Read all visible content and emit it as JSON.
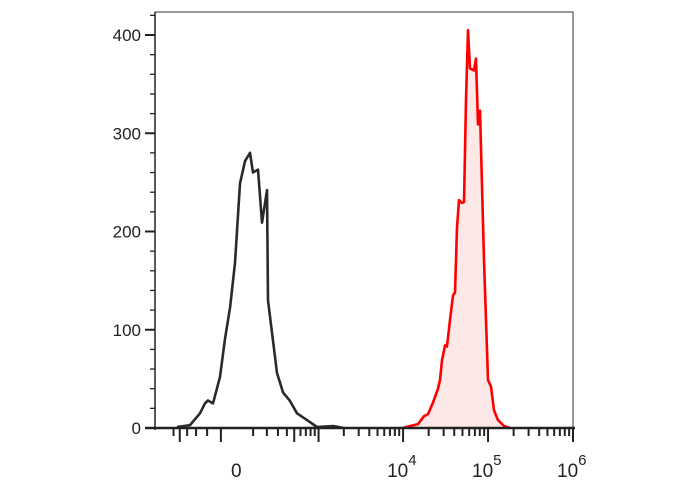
{
  "chart_data": {
    "type": "line",
    "title": "",
    "xlabel": "",
    "ylabel": "",
    "x_scale": "biexponential",
    "xlim": [
      -800,
      1000000
    ],
    "ylim": [
      0,
      420
    ],
    "grid": false,
    "y_ticks": [
      0,
      100,
      200,
      300,
      400
    ],
    "y_tick_labels": [
      "0",
      "100",
      "200",
      "300",
      "400"
    ],
    "x_ticks": [
      {
        "value": 0,
        "base": "0",
        "exp": ""
      },
      {
        "value": 10000,
        "base": "10",
        "exp": "4"
      },
      {
        "value": 100000,
        "base": "10",
        "exp": "5"
      },
      {
        "value": 1000000,
        "base": "10",
        "exp": "6"
      }
    ],
    "series": [
      {
        "color": "#2a2a2a",
        "fill": "none",
        "x": [
          -542,
          -366,
          -262,
          -218,
          -193,
          -155,
          -106,
          -74,
          -42,
          -12,
          18,
          49,
          80,
          99,
          133,
          162,
          201,
          209,
          291,
          355,
          437,
          542,
          724,
          957,
          1500,
          2000
        ],
        "y": [
          1,
          3,
          15,
          25,
          28,
          25,
          52,
          90,
          123,
          168,
          249,
          272,
          280,
          260,
          263,
          209,
          242,
          130,
          56,
          36,
          28,
          15,
          8,
          1,
          2,
          0
        ]
      },
      {
        "color": "#ff0000",
        "fill": "#fde8e8",
        "x": [
          10000,
          12060,
          14990,
          17640,
          19650,
          22500,
          25760,
          27200,
          28720,
          31150,
          32860,
          35630,
          38680,
          40850,
          43130,
          45510,
          49400,
          52130,
          55060,
          58080,
          61270,
          68330,
          72150,
          76150,
          80360,
          89580,
          99900,
          108300,
          117500,
          124100,
          131000,
          154200,
          181200
        ],
        "y": [
          0,
          2,
          4,
          12,
          14,
          26,
          40,
          49,
          69,
          84,
          83,
          110,
          135,
          138,
          204,
          232,
          229,
          230,
          334,
          405,
          366,
          364,
          376,
          309,
          323,
          171,
          49,
          42,
          18,
          13,
          8,
          2,
          0
        ]
      }
    ]
  }
}
